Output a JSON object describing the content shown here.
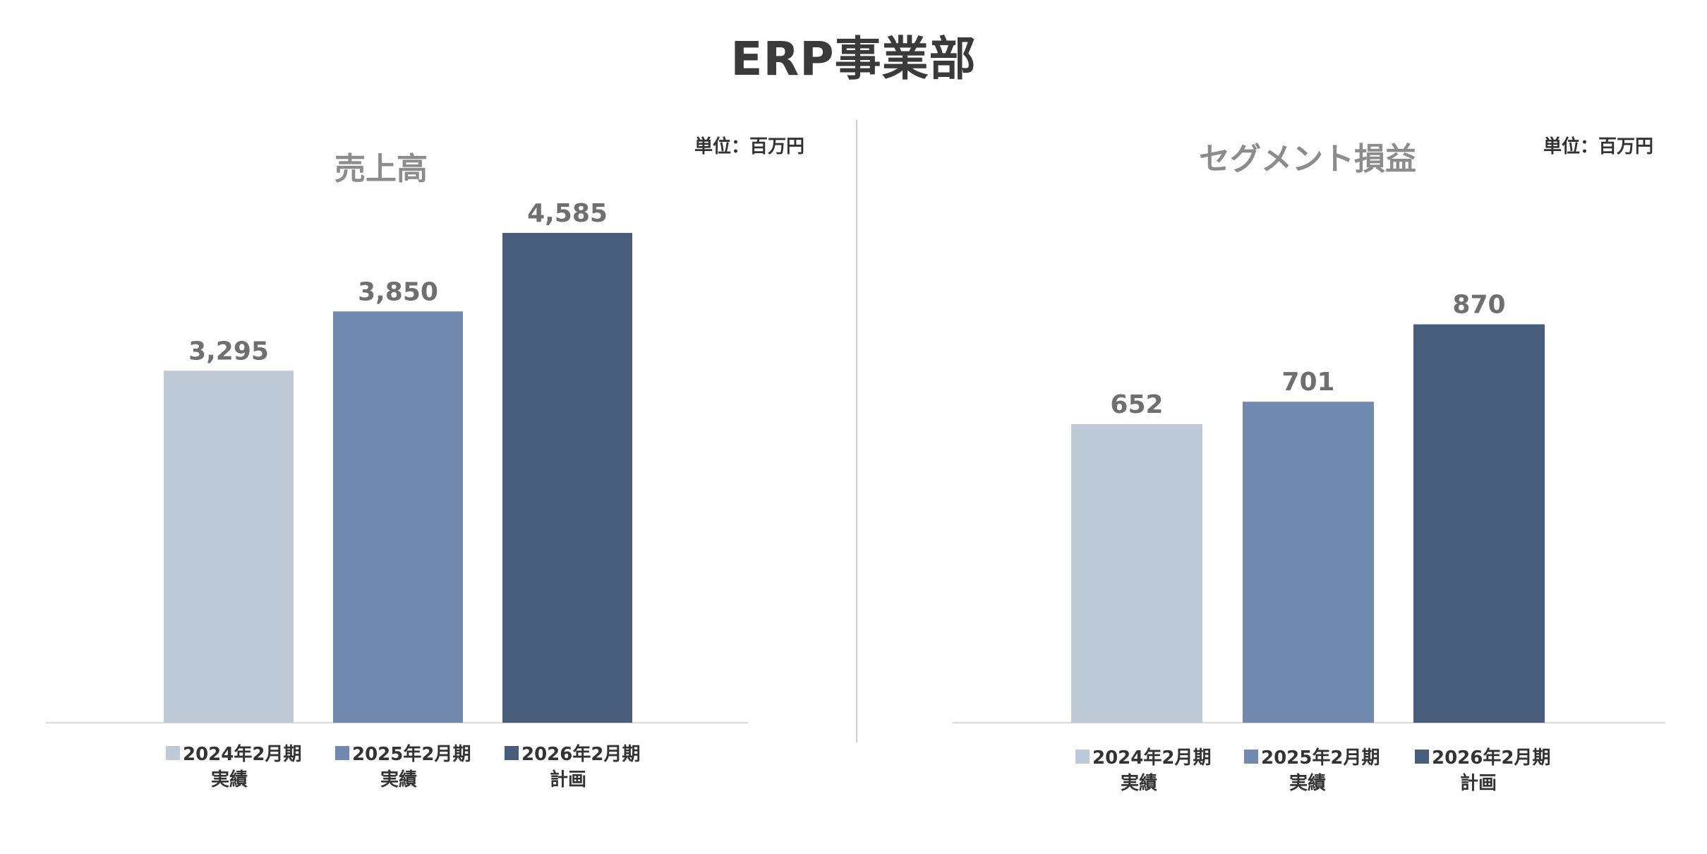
{
  "page": {
    "title": "ERP事業部"
  },
  "chart_data": [
    {
      "type": "bar",
      "title": "売上高",
      "unit": "単位：百万円",
      "categories": [
        {
          "line1": "2024年2月期",
          "line2": "実績"
        },
        {
          "line1": "2025年2月期",
          "line2": "実績"
        },
        {
          "line1": "2026年2月期",
          "line2": "計画"
        }
      ],
      "values": [
        3295,
        3850,
        4585
      ],
      "value_labels": [
        "3,295",
        "3,850",
        "4,585"
      ],
      "colors": [
        "#bfcad9",
        "#7189ae",
        "#485d7c"
      ],
      "ylim": [
        0,
        4585
      ],
      "xlabel": "",
      "ylabel": "",
      "grid": false,
      "legend_position": "bottom"
    },
    {
      "type": "bar",
      "title": "セグメント損益",
      "unit": "単位：百万円",
      "categories": [
        {
          "line1": "2024年2月期",
          "line2": "実績"
        },
        {
          "line1": "2025年2月期",
          "line2": "実績"
        },
        {
          "line1": "2026年2月期",
          "line2": "計画"
        }
      ],
      "values": [
        652,
        701,
        870
      ],
      "value_labels": [
        "652",
        "701",
        "870"
      ],
      "colors": [
        "#bfcad9",
        "#7189ae",
        "#485d7c"
      ],
      "ylim": [
        0,
        1270
      ],
      "xlabel": "",
      "ylabel": "",
      "grid": false,
      "legend_position": "bottom"
    }
  ]
}
